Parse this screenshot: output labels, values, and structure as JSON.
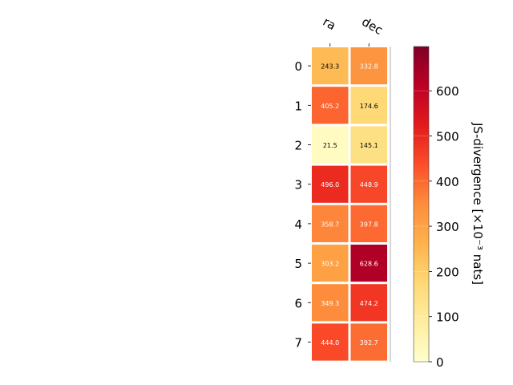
{
  "chart_data": {
    "type": "heatmap",
    "columns": [
      "ra",
      "dec"
    ],
    "rows": [
      "0",
      "1",
      "2",
      "3",
      "4",
      "5",
      "6",
      "7"
    ],
    "values": [
      [
        243.3,
        332.8
      ],
      [
        405.2,
        174.6
      ],
      [
        21.5,
        145.1
      ],
      [
        496.0,
        448.9
      ],
      [
        358.7,
        397.8
      ],
      [
        303.2,
        628.6
      ],
      [
        349.3,
        474.2
      ],
      [
        444.0,
        392.7
      ]
    ],
    "value_labels": [
      [
        "243.3",
        "332.8"
      ],
      [
        "405.2",
        "174.6"
      ],
      [
        "21.5",
        "145.1"
      ],
      [
        "496.0",
        "448.9"
      ],
      [
        "358.7",
        "397.8"
      ],
      [
        "303.2",
        "628.6"
      ],
      [
        "349.3",
        "474.2"
      ],
      [
        "444.0",
        "392.7"
      ]
    ],
    "colormap": "YlOrRd",
    "colorbar": {
      "label": "JS-divergence [×10⁻³ nats]",
      "range": [
        0,
        698
      ],
      "ticks": [
        0,
        100,
        200,
        300,
        400,
        500,
        600
      ],
      "tick_labels": [
        "0",
        "100",
        "200",
        "300",
        "400",
        "500",
        "600"
      ]
    },
    "grid": false
  }
}
